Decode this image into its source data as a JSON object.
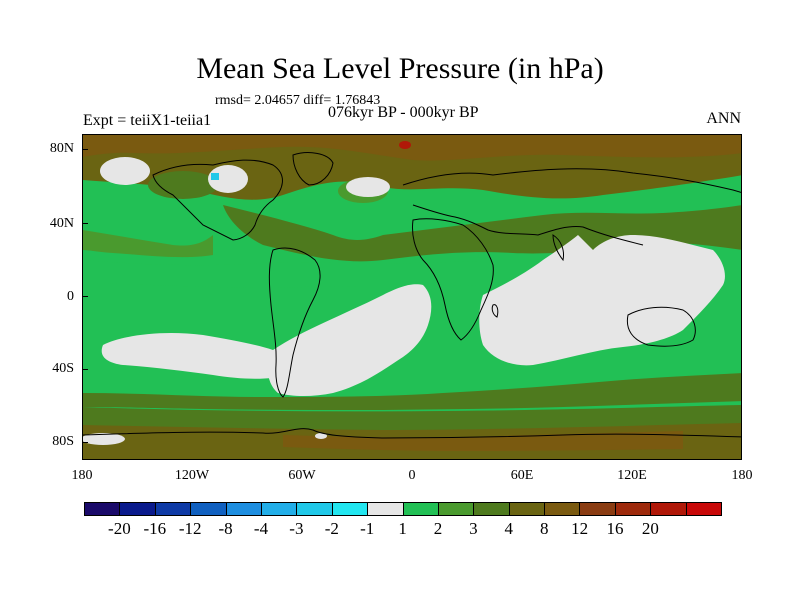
{
  "title": "Mean Sea Level Pressure (in hPa)",
  "stats": "rmsd= 2.04657  diff= 1.76843",
  "left_label": "Expt = teiiX1-teiia1",
  "center_label": "076kyr BP - 000kyr BP",
  "right_label": "ANN",
  "y_ticks": [
    "80N",
    "40N",
    "0",
    "40S",
    "80S"
  ],
  "x_ticks": [
    "180",
    "120W",
    "60W",
    "0",
    "60E",
    "120E",
    "180"
  ],
  "colorbar": {
    "colors": [
      "#1a0a6a",
      "#0a1a8c",
      "#0e3aa6",
      "#1060c0",
      "#1e8ee0",
      "#22aee8",
      "#20c8e8",
      "#22e6f0",
      "#e6e6e6",
      "#22c055",
      "#4a9a2e",
      "#4e7a1e",
      "#6a6412",
      "#7a5a10",
      "#8a3c12",
      "#9e2a0c",
      "#b01808",
      "#c80808"
    ],
    "labels": [
      "-20",
      "-16",
      "-12",
      "-8",
      "-4",
      "-3",
      "-2",
      "-1",
      "1",
      "2",
      "3",
      "4",
      "8",
      "12",
      "16",
      "20"
    ]
  },
  "map_colors": {
    "ocean_base": "#22c055",
    "mid_green": "#4a9a2e",
    "olive": "#4e7a1e",
    "brown": "#6a6412",
    "dark_brown": "#7a5a10",
    "white": "#e6e6e6",
    "cyan": "#20c8e8",
    "red": "#b01808"
  }
}
